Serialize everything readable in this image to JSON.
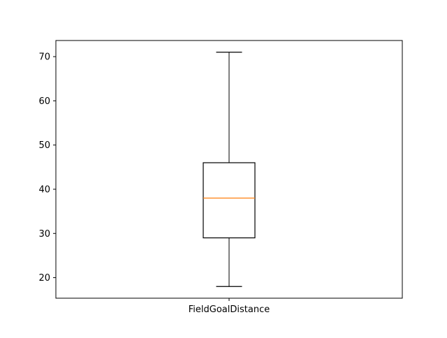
{
  "chart_data": {
    "type": "box",
    "categories": [
      "FieldGoalDistance"
    ],
    "boxes": [
      {
        "label": "FieldGoalDistance",
        "whisker_low": 18,
        "q1": 29,
        "median": 38,
        "q3": 46,
        "whisker_high": 71
      }
    ],
    "yticks": [
      20,
      30,
      40,
      50,
      60,
      70
    ],
    "ylim": [
      15.35,
      73.65
    ],
    "title": "",
    "xlabel": "",
    "ylabel": "",
    "grid": false,
    "colors": {
      "box": "#000000",
      "median": "#ff7f0e",
      "whisker": "#000000"
    }
  }
}
